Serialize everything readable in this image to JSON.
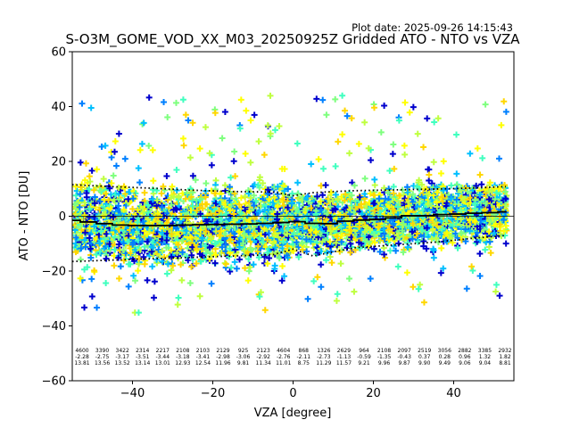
{
  "chart_data": {
    "type": "scatter",
    "title": "S-O3M_GOME_VOD_XX_M03_20250925Z Gridded ATO - NTO vs VZA",
    "plot_date": "Plot date: 2025-09-26 14:15:43",
    "xlabel": "VZA [degree]",
    "ylabel": "ATO - NTO [DU]",
    "xlim": [
      -55,
      55
    ],
    "ylim": [
      -60,
      60
    ],
    "xticks": [
      -40,
      -20,
      0,
      20,
      40
    ],
    "xtick_labels": [
      "−40",
      "−20",
      "0",
      "20",
      "40"
    ],
    "yticks": [
      -60,
      -40,
      -20,
      0,
      20,
      40,
      60
    ],
    "ytick_labels": [
      "−60",
      "−40",
      "−20",
      "0",
      "20",
      "40",
      "60"
    ],
    "grid": false,
    "marker": "+",
    "marker_colors": [
      "#0000cd",
      "#0080ff",
      "#00bfff",
      "#40ffbf",
      "#7fff7f",
      "#bfff40",
      "#ffff00",
      "#ffd700"
    ],
    "bins_vza": [
      -53,
      -49,
      -45,
      -41,
      -37,
      -33,
      -29,
      -25,
      -21,
      -17,
      -13,
      -9,
      -5,
      -1,
      3,
      7,
      11,
      15,
      19,
      23,
      27,
      31,
      35,
      39,
      43,
      47,
      51
    ],
    "bins_vza_display": [
      -53,
      -49,
      -45,
      -41,
      -37,
      -33,
      -29,
      -25,
      -21,
      -17,
      -13,
      -9,
      -5,
      3,
      7,
      11,
      15,
      19,
      23,
      27,
      31,
      35,
      39,
      43,
      47,
      51
    ],
    "mean_line": {
      "x": [
        -55,
        -53,
        -49,
        -45,
        -41,
        -37,
        -33,
        -29,
        -25,
        -21,
        -17,
        -13,
        -9,
        -5,
        -1,
        3,
        7,
        11,
        15,
        19,
        23,
        27,
        31,
        35,
        39,
        43,
        47,
        51,
        53
      ],
      "y": [
        -1.5,
        -2.1,
        -2.7,
        -3.2,
        -3.4,
        -3.4,
        -3.4,
        -3.2,
        -3.1,
        -3.0,
        -2.9,
        -2.8,
        -2.6,
        -2.3,
        -2.0,
        -2.6,
        -2.7,
        -1.8,
        -1.4,
        -1.2,
        -0.6,
        0.2,
        0.2,
        0.6,
        0.8,
        1.1,
        1.3,
        1.6,
        1.8
      ]
    },
    "upper_sigma_line": {
      "x": [
        -55,
        -45,
        -35,
        -25,
        -15,
        -5,
        0,
        5,
        10,
        15,
        25,
        35,
        45,
        53
      ],
      "y": [
        11.5,
        10.8,
        10.2,
        9.5,
        9.0,
        8.8,
        7.5,
        8.6,
        9.0,
        9.3,
        9.6,
        9.9,
        10.3,
        10.8
      ]
    },
    "lower_sigma_line": {
      "x": [
        -55,
        -45,
        -35,
        -25,
        -15,
        -5,
        0,
        5,
        10,
        15,
        25,
        35,
        45,
        53
      ],
      "y": [
        -16.5,
        -16.0,
        -15.5,
        -15.0,
        -14.5,
        -14.0,
        -12.0,
        -14.5,
        -13.0,
        -11.5,
        -10.5,
        -9.5,
        -8.0,
        -7.0
      ]
    },
    "bin_stats": {
      "counts": [
        "4600",
        "3390",
        "3422",
        "2314",
        "2217",
        "2108",
        "2103",
        "2129",
        "925",
        "2123",
        "4604",
        "868",
        "1326",
        "2629",
        "964",
        "2108",
        "2097",
        "2519",
        "3056",
        "2882",
        "3385",
        "2932"
      ],
      "means": [
        "-2.28",
        "-2.75",
        "-3.17",
        "-3.51",
        "-3.44",
        "-3.18",
        "-3.41",
        "-2.98",
        "-3.06",
        "-2.92",
        "-2.76",
        "-2.11",
        "-2.73",
        "-1.13",
        "-0.59",
        "-1.35",
        "-0.43",
        "0.37",
        "0.28",
        "0.96",
        "1.32",
        "1.82"
      ],
      "stds": [
        "13.81",
        "13.56",
        "13.52",
        "13.14",
        "13.01",
        "12.93",
        "12.54",
        "11.96",
        "9.81",
        "11.34",
        "11.01",
        "8.75",
        "11.29",
        "11.57",
        "9.21",
        "9.96",
        "9.87",
        "9.90",
        "9.49",
        "9.06",
        "9.04",
        "8.81"
      ]
    }
  }
}
